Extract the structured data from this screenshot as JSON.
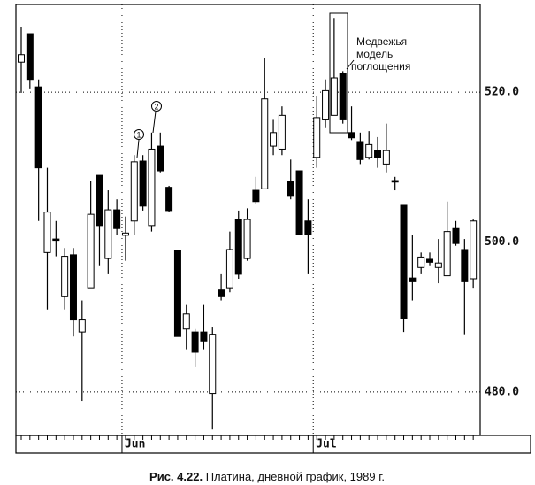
{
  "chart_data": {
    "type": "candlestick",
    "caption_label": "Рис. 4.22.",
    "caption": "Платина, дневной график, 1989 г.",
    "annotation": [
      "Медвежья",
      "модель",
      "поглощения"
    ],
    "markers": [
      "1",
      "2"
    ],
    "categories": [
      null,
      null,
      null,
      null,
      null,
      null,
      null,
      null,
      null,
      null,
      null,
      null,
      "Jun",
      null,
      null,
      null,
      null,
      null,
      null,
      null,
      null,
      null,
      null,
      null,
      null,
      null,
      null,
      null,
      null,
      null,
      null,
      null,
      null,
      null,
      "Jul",
      null,
      null,
      null,
      null,
      null,
      null,
      null,
      null,
      null,
      null,
      null,
      null,
      null,
      null,
      null,
      null,
      null,
      null
    ],
    "up_color": "#ffffff",
    "down_color": "#000000",
    "ylim": [
      474.2,
      531.7
    ],
    "yticks": [
      {
        "value": 480,
        "label": "480.0"
      },
      {
        "value": 500,
        "label": "500.0"
      },
      {
        "value": 520,
        "label": "520.0"
      }
    ],
    "grid": true,
    "open": [
      524.0,
      527.8,
      520.7,
      498.6,
      500.4,
      492.7,
      498.3,
      488.0,
      493.9,
      508.9,
      497.8,
      504.3,
      500.9,
      502.8,
      510.8,
      502.2,
      512.8,
      507.3,
      498.9,
      488.4,
      488.0,
      488.0,
      479.8,
      493.6,
      493.9,
      503.0,
      497.8,
      506.9,
      507.1,
      512.8,
      512.4,
      508.1,
      509.5,
      502.8,
      511.3,
      516.3,
      516.9,
      522.5,
      514.6,
      513.4,
      511.3,
      512.2,
      510.4,
      508.2,
      504.9,
      495.2,
      496.6,
      497.7,
      496.6,
      495.5,
      501.8,
      499.0,
      495.1
    ],
    "high": [
      528.7,
      527.8,
      521.7,
      509.9,
      502.8,
      499.2,
      499.2,
      492.2,
      508.1,
      508.9,
      506.9,
      505.7,
      503.4,
      511.6,
      511.6,
      514.6,
      514.6,
      507.5,
      498.9,
      491.6,
      488.4,
      491.6,
      488.6,
      495.7,
      501.4,
      504.2,
      504.5,
      508.7,
      524.6,
      516.3,
      518.1,
      511.0,
      509.5,
      505.7,
      519.5,
      521.7,
      529.9,
      522.8,
      518.1,
      514.6,
      514.8,
      514.0,
      515.8,
      508.7,
      504.9,
      501.0,
      498.6,
      498.6,
      500.4,
      505.4,
      502.8,
      500.4,
      503.0
    ],
    "low": [
      519.9,
      520.5,
      502.8,
      491.0,
      498.1,
      491.0,
      487.4,
      478.8,
      493.9,
      496.9,
      495.7,
      501.0,
      497.5,
      501.0,
      504.2,
      501.4,
      509.3,
      504.0,
      487.4,
      485.7,
      483.3,
      485.7,
      475.0,
      492.2,
      493.3,
      495.1,
      497.5,
      505.1,
      507.1,
      511.6,
      511.6,
      505.7,
      501.0,
      495.7,
      509.9,
      515.2,
      516.9,
      515.8,
      513.6,
      510.4,
      511.0,
      509.9,
      509.3,
      506.9,
      488.0,
      492.2,
      495.7,
      496.9,
      494.5,
      495.5,
      499.5,
      487.7,
      493.9
    ],
    "close": [
      525.0,
      521.7,
      509.9,
      504.0,
      500.3,
      498.1,
      489.6,
      489.6,
      503.7,
      502.2,
      504.3,
      501.8,
      501.2,
      510.7,
      504.8,
      512.4,
      509.5,
      504.2,
      487.4,
      490.4,
      485.3,
      486.8,
      487.7,
      492.7,
      499.0,
      495.7,
      503.0,
      505.4,
      519.1,
      514.6,
      516.9,
      506.1,
      501.0,
      501.0,
      516.6,
      520.2,
      521.9,
      516.3,
      513.9,
      511.0,
      513.0,
      511.3,
      512.2,
      508.0,
      489.8,
      494.7,
      498.0,
      497.3,
      497.2,
      501.4,
      499.8,
      494.7,
      502.8
    ]
  }
}
